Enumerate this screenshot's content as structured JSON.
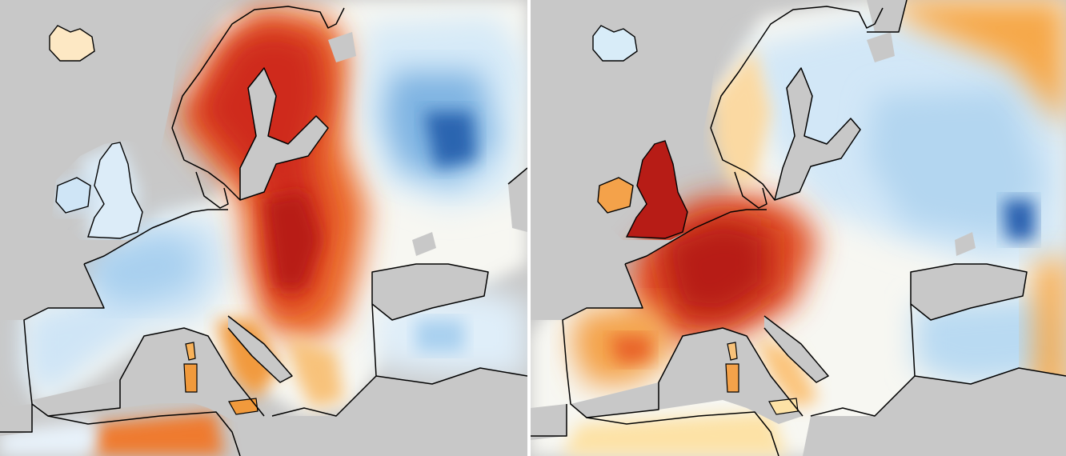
{
  "figure": {
    "panels": [
      {
        "id": "left",
        "description_label": "",
        "map": "europe",
        "palette": {
          "land_mask": "#c8c8c8",
          "coast": "#000000",
          "anomaly_very_warm": "#c8221a",
          "anomaly_warm": "#e9612a",
          "anomaly_mild_warm": "#f6a03f",
          "anomaly_slight_warm": "#fde2a6",
          "anomaly_neutral": "#f7f7f2",
          "anomaly_slight_cold": "#d8ecf8",
          "anomaly_cold": "#8fc1e8",
          "anomaly_very_cold": "#2f6db5"
        },
        "features": {
          "warm_core": "scandinavia-to-eastern-europe",
          "cold_core": "western-russia"
        }
      },
      {
        "id": "right",
        "description_label": "",
        "map": "europe",
        "palette": {
          "land_mask": "#c8c8c8",
          "coast": "#000000",
          "anomaly_very_warm": "#b51b16",
          "anomaly_warm": "#dc4a22",
          "anomaly_mild_warm": "#f49a3c",
          "anomaly_slight_warm": "#fde2a6",
          "anomaly_neutral": "#f7f7f2",
          "anomaly_slight_cold": "#d8ecf8",
          "anomaly_cold": "#a6cfee",
          "anomaly_very_cold": "#2a62b0"
        },
        "features": {
          "warm_core": "britain-france-germany",
          "cold_core": "russia"
        }
      }
    ]
  }
}
